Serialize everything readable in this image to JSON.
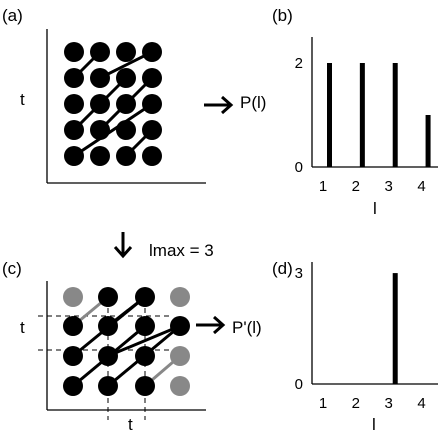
{
  "panels": {
    "a": {
      "label": "(a)",
      "ylabel": "t"
    },
    "b": {
      "label": "(b)",
      "ylabel": "P(l)",
      "xlabel": "l"
    },
    "c": {
      "label": "(c)",
      "ylabel": "t",
      "xlabel": "t"
    },
    "d": {
      "label": "(d)",
      "ylabel": "P'(l)",
      "xlabel": "l"
    }
  },
  "step_label": "lmax = 3",
  "colors": {
    "dark": "#000000",
    "removed": "#888888"
  },
  "chart_data": [
    {
      "type": "bar",
      "panel": "b",
      "categories": [
        "1",
        "2",
        "3",
        "4"
      ],
      "values": [
        2,
        2,
        2,
        1
      ],
      "xlabel": "l",
      "ylabel": "P(l)",
      "ylim": [
        0,
        2.5
      ],
      "yticks": [
        "0",
        "2"
      ]
    },
    {
      "type": "bar",
      "panel": "d",
      "categories": [
        "1",
        "2",
        "3",
        "4"
      ],
      "values": [
        0,
        0,
        3,
        0
      ],
      "xlabel": "l",
      "ylabel": "P'(l)",
      "ylim": [
        0,
        3.3
      ],
      "yticks": [
        "0",
        "3"
      ]
    }
  ]
}
